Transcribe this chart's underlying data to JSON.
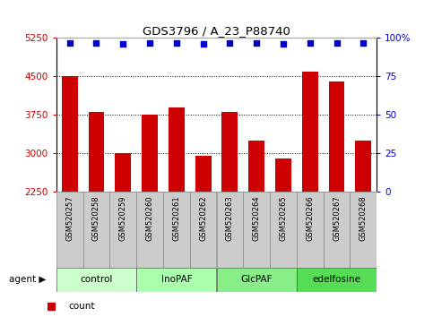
{
  "title": "GDS3796 / A_23_P88740",
  "samples": [
    "GSM520257",
    "GSM520258",
    "GSM520259",
    "GSM520260",
    "GSM520261",
    "GSM520262",
    "GSM520263",
    "GSM520264",
    "GSM520265",
    "GSM520266",
    "GSM520267",
    "GSM520268"
  ],
  "counts": [
    4500,
    3800,
    3000,
    3750,
    3900,
    2950,
    3800,
    3250,
    2900,
    4600,
    4400,
    3250
  ],
  "percentile_ranks": [
    97,
    97,
    96,
    97,
    97,
    96,
    97,
    97,
    96,
    97,
    97,
    97
  ],
  "groups": [
    {
      "label": "control",
      "start": 0,
      "end": 3,
      "color": "#ccffcc"
    },
    {
      "label": "InoPAF",
      "start": 3,
      "end": 6,
      "color": "#aaffaa"
    },
    {
      "label": "GlcPAF",
      "start": 6,
      "end": 9,
      "color": "#88ee88"
    },
    {
      "label": "edelfosine",
      "start": 9,
      "end": 12,
      "color": "#55dd55"
    }
  ],
  "bar_color": "#cc0000",
  "dot_color": "#0000cc",
  "ylim_left": [
    2250,
    5250
  ],
  "yticks_left": [
    2250,
    3000,
    3750,
    4500,
    5250
  ],
  "ylim_right": [
    0,
    100
  ],
  "yticks_right": [
    0,
    25,
    50,
    75,
    100
  ],
  "grid_color": "#000000",
  "tick_label_color_left": "#cc0000",
  "tick_label_color_right": "#0000cc",
  "sample_bg_color": "#cccccc",
  "xlabel_group": "agent"
}
